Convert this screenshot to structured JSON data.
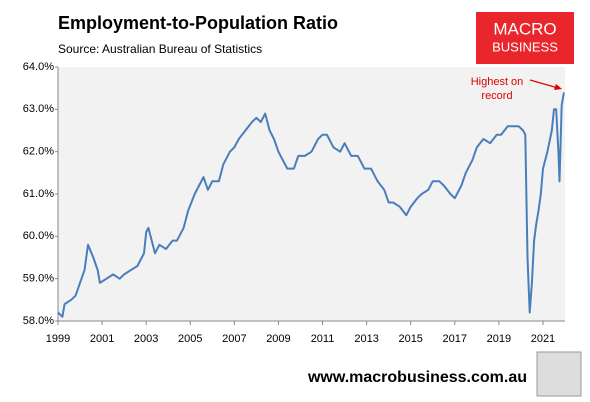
{
  "chart_data": {
    "type": "line",
    "title": "Employment-to-Population Ratio",
    "subtitle": "Source: Australian Bureau of Statistics",
    "annotation_lines": [
      "Highest on",
      "record"
    ],
    "logo_lines": [
      "MACRO",
      "BUSINESS"
    ],
    "footer": "www.macrobusiness.com.au",
    "color": "#4a7ebb",
    "annotation_color": "#e00000",
    "xlim": [
      1999,
      2022
    ],
    "xticks": [
      1999,
      2001,
      2003,
      2005,
      2007,
      2009,
      2011,
      2013,
      2015,
      2017,
      2019,
      2021
    ],
    "ylim": [
      58,
      64
    ],
    "yticks": [
      {
        "value": 58,
        "label": "58.0%"
      },
      {
        "value": 59,
        "label": "59.0%"
      },
      {
        "value": 60,
        "label": "60.0%"
      },
      {
        "value": 61,
        "label": "61.0%"
      },
      {
        "value": 62,
        "label": "62.0%"
      },
      {
        "value": 63,
        "label": "63.0%"
      },
      {
        "value": 64,
        "label": "64.0%"
      }
    ],
    "x": [
      1999.0,
      1999.2,
      1999.3,
      1999.6,
      1999.8,
      2000.0,
      2000.2,
      2000.36,
      2000.6,
      2000.8,
      2000.9,
      2001.2,
      2001.5,
      2001.8,
      2002.0,
      2002.3,
      2002.6,
      2002.9,
      2003.0,
      2003.1,
      2003.4,
      2003.6,
      2003.9,
      2004.2,
      2004.4,
      2004.7,
      2004.9,
      2005.2,
      2005.4,
      2005.6,
      2005.8,
      2006.0,
      2006.3,
      2006.5,
      2006.8,
      2007.0,
      2007.2,
      2007.5,
      2007.8,
      2008.0,
      2008.2,
      2008.4,
      2008.6,
      2008.8,
      2009.0,
      2009.2,
      2009.4,
      2009.7,
      2009.9,
      2010.2,
      2010.5,
      2010.8,
      2011.0,
      2011.2,
      2011.5,
      2011.8,
      2012.0,
      2012.3,
      2012.6,
      2012.9,
      2013.2,
      2013.5,
      2013.8,
      2014.0,
      2014.2,
      2014.5,
      2014.8,
      2015.0,
      2015.3,
      2015.5,
      2015.8,
      2016.0,
      2016.3,
      2016.5,
      2016.8,
      2017.0,
      2017.3,
      2017.5,
      2017.8,
      2018.0,
      2018.3,
      2018.6,
      2018.9,
      2019.1,
      2019.4,
      2019.7,
      2019.9,
      2020.1,
      2020.2,
      2020.3,
      2020.4,
      2020.5,
      2020.6,
      2020.7,
      2020.8,
      2020.9,
      2021.0,
      2021.2,
      2021.4,
      2021.5,
      2021.6,
      2021.7,
      2021.75,
      2021.85,
      2021.95
    ],
    "values": [
      58.2,
      58.1,
      58.4,
      58.5,
      58.6,
      58.9,
      59.2,
      59.8,
      59.5,
      59.2,
      58.9,
      59.0,
      59.1,
      59.0,
      59.1,
      59.2,
      59.3,
      59.6,
      60.1,
      60.2,
      59.6,
      59.8,
      59.7,
      59.9,
      59.9,
      60.2,
      60.6,
      61.0,
      61.2,
      61.4,
      61.1,
      61.3,
      61.3,
      61.7,
      62.0,
      62.1,
      62.3,
      62.5,
      62.7,
      62.8,
      62.7,
      62.9,
      62.5,
      62.3,
      62.0,
      61.8,
      61.6,
      61.6,
      61.9,
      61.9,
      62.0,
      62.3,
      62.4,
      62.4,
      62.1,
      62.0,
      62.2,
      61.9,
      61.9,
      61.6,
      61.6,
      61.3,
      61.1,
      60.8,
      60.8,
      60.7,
      60.5,
      60.7,
      60.9,
      61.0,
      61.1,
      61.3,
      61.3,
      61.2,
      61.0,
      60.9,
      61.2,
      61.5,
      61.8,
      62.1,
      62.3,
      62.2,
      62.4,
      62.4,
      62.6,
      62.6,
      62.6,
      62.5,
      62.4,
      59.5,
      58.2,
      58.9,
      59.9,
      60.3,
      60.6,
      61.0,
      61.6,
      62.0,
      62.5,
      63.0,
      63.0,
      62.0,
      61.3,
      63.1,
      63.4
    ]
  }
}
